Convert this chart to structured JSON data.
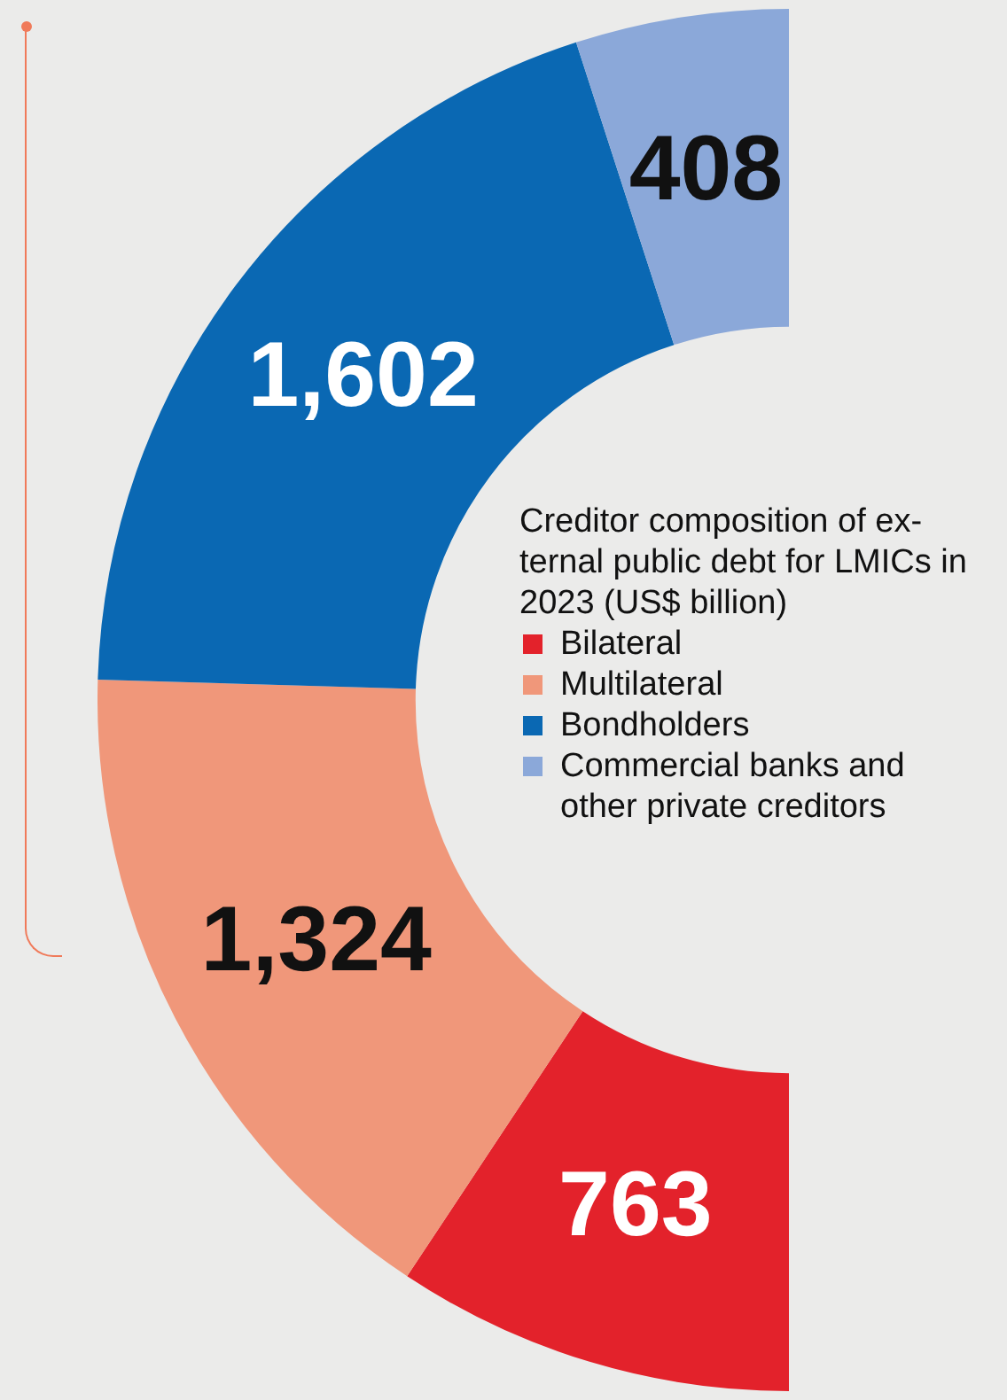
{
  "chart_data": {
    "type": "donut",
    "title": "Creditor composition of ex-ternal public debt for LMICs in 2023 (US$ billion)",
    "categories": [
      "Bilateral",
      "Multilateral",
      "Bondholders",
      "Commercial banks and other private creditors"
    ],
    "values": [
      763,
      1324,
      1602,
      408
    ],
    "value_labels": [
      "763",
      "1,324",
      "1,602",
      "408"
    ],
    "colors": [
      "#e3222b",
      "#f0977a",
      "#0a68b3",
      "#8ba8d9"
    ],
    "legend": "right"
  }
}
